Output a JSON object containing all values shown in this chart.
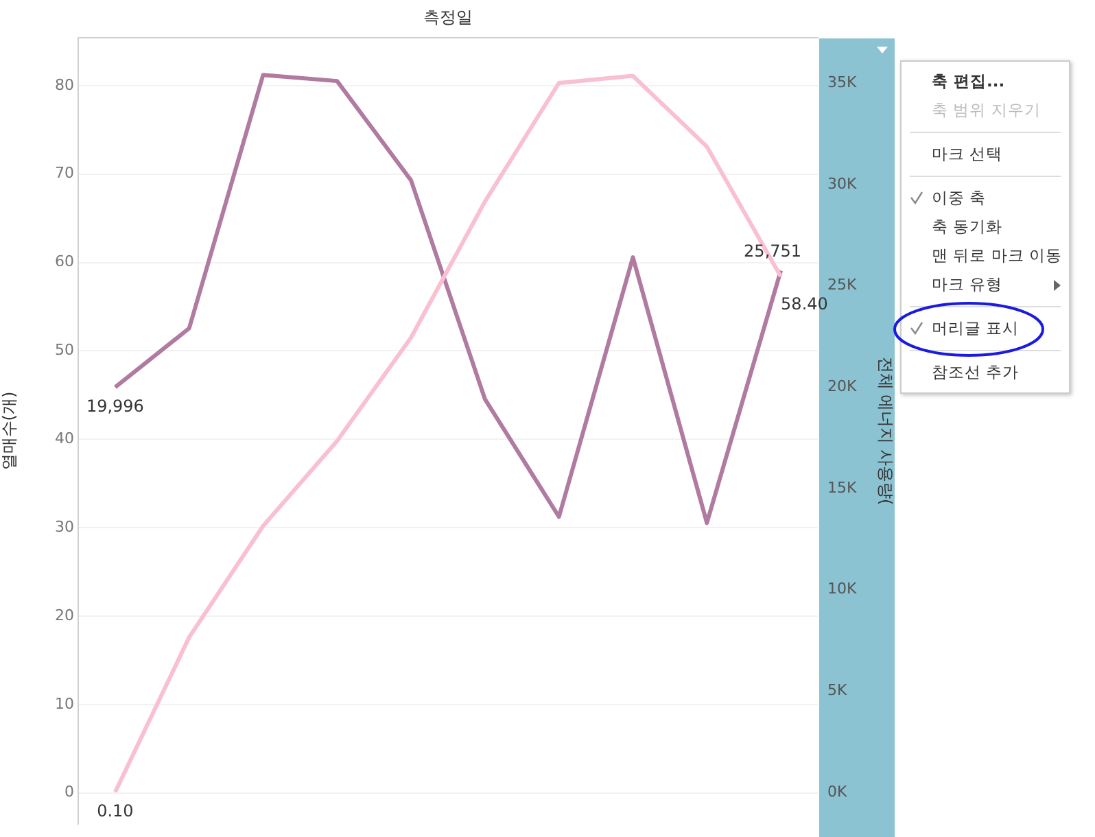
{
  "chart_data": {
    "type": "line",
    "xlabel": "측정일",
    "ylabel": "열매수(개)",
    "y2label": "전체 에너지 사용량(",
    "categories": [
      null,
      null,
      null,
      null,
      null,
      null,
      null,
      null,
      null,
      null
    ],
    "series": [
      {
        "color": "#f9bfd2",
        "values": [
          0.1,
          17.6,
          30.2,
          39.8,
          51.5,
          66.9,
          80.3,
          81.1,
          73.1,
          58.4
        ],
        "value_labels": [
          "0.10",
          null,
          null,
          null,
          null,
          null,
          null,
          null,
          null,
          "58.40"
        ]
      },
      {
        "color": "#b07aa1",
        "axis": "y2",
        "values": [
          19996,
          22900,
          35400,
          35100,
          30200,
          19400,
          13600,
          26400,
          13300,
          25751
        ],
        "value_labels": [
          "19,996",
          null,
          null,
          null,
          null,
          null,
          null,
          null,
          null,
          "25,751"
        ]
      }
    ],
    "ylim": [
      -3.5,
      85.4
    ],
    "yticks": [
      0,
      10,
      20,
      30,
      40,
      50,
      60,
      70,
      80
    ],
    "y2lim": [
      -1550,
      37230
    ],
    "y2ticks": [
      {
        "value": 0,
        "label": "0K"
      },
      {
        "value": 5000,
        "label": "5K"
      },
      {
        "value": 10000,
        "label": "10K"
      },
      {
        "value": 15000,
        "label": "15K"
      },
      {
        "value": 20000,
        "label": "20K"
      },
      {
        "value": 25000,
        "label": "25K"
      },
      {
        "value": 30000,
        "label": "30K"
      },
      {
        "value": 35000,
        "label": "35K"
      }
    ],
    "grid": "y",
    "legend": false,
    "marker": "none",
    "line_style": "solid",
    "annotations": [
      "축 편집...",
      "축 범위 지우기",
      "마크 선택",
      "이중 축",
      "축 동기화",
      "맨 뒤로 마크 이동",
      "마크 유형",
      "머리글 표시",
      "참조선 추가"
    ]
  }
}
